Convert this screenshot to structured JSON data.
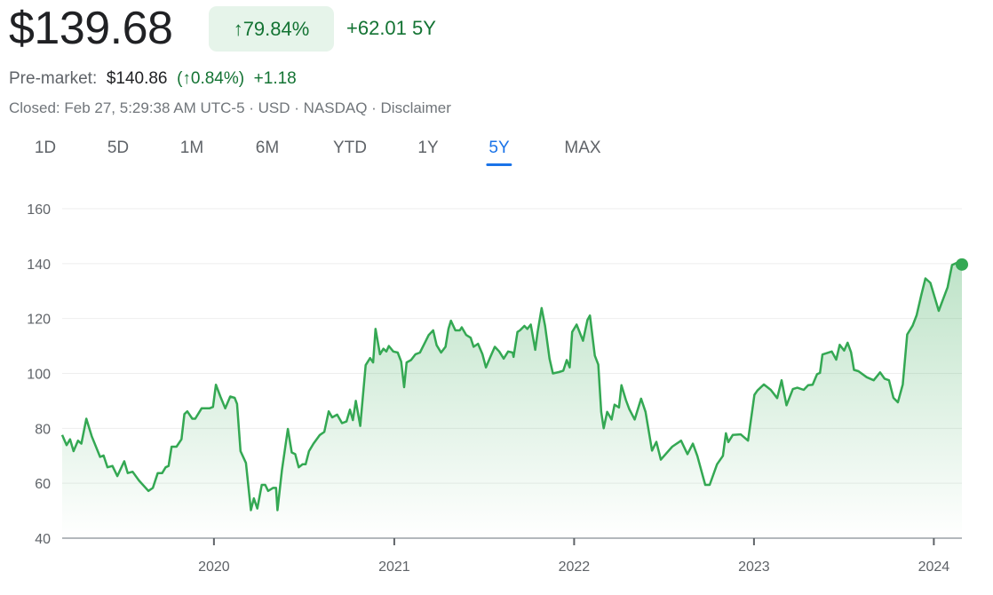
{
  "header": {
    "price": "$139.68",
    "change_percent": "↑79.84%",
    "change_abs": "+62.01 5Y",
    "premarket_label": "Pre-market:",
    "premarket_price": "$140.86",
    "premarket_change_percent": "(↑0.84%)",
    "premarket_change_abs": "+1.18",
    "closed_info": "Closed: Feb 27, 5:29:38 AM UTC-5 · USD · NASDAQ · Disclaimer"
  },
  "tabs": [
    {
      "label": "1D",
      "active": false
    },
    {
      "label": "5D",
      "active": false
    },
    {
      "label": "1M",
      "active": false
    },
    {
      "label": "6M",
      "active": false
    },
    {
      "label": "YTD",
      "active": false
    },
    {
      "label": "1Y",
      "active": false
    },
    {
      "label": "5Y",
      "active": true
    },
    {
      "label": "MAX",
      "active": false
    }
  ],
  "colors": {
    "up": "#137333",
    "line": "#34a853",
    "badge_bg": "#e6f4ea",
    "accent": "#1a73e8"
  },
  "chart_data": {
    "type": "area",
    "xlim": [
      "2019-02-27",
      "2024-02-27"
    ],
    "ylim": [
      40,
      160
    ],
    "yticks": [
      40,
      60,
      80,
      100,
      120,
      140,
      160
    ],
    "xticks": [
      "2020",
      "2021",
      "2022",
      "2023",
      "2024"
    ],
    "grid": true,
    "series": [
      {
        "x": [
          "2019-02-27",
          "2019-03-08",
          "2019-03-15",
          "2019-03-22",
          "2019-03-31",
          "2019-04-07",
          "2019-04-17",
          "2019-04-28",
          "2019-05-15",
          "2019-05-22",
          "2019-05-30",
          "2019-06-09",
          "2019-06-19",
          "2019-07-03",
          "2019-07-10",
          "2019-07-20",
          "2019-08-02",
          "2019-08-21",
          "2019-08-30",
          "2019-09-09",
          "2019-09-18",
          "2019-09-25",
          "2019-10-01",
          "2019-10-07",
          "2019-10-17",
          "2019-10-27",
          "2019-11-02",
          "2019-11-08",
          "2019-11-18",
          "2019-11-24",
          "2019-12-07",
          "2019-12-23",
          "2019-12-30",
          "2020-01-05",
          "2020-01-14",
          "2020-01-24",
          "2020-02-03",
          "2020-02-12",
          "2020-02-17",
          "2020-02-24",
          "2020-03-06",
          "2020-03-16",
          "2020-03-22",
          "2020-03-29",
          "2020-04-07",
          "2020-04-14",
          "2020-04-20",
          "2020-04-30",
          "2020-05-06",
          "2020-05-09",
          "2020-05-18",
          "2020-05-30",
          "2020-06-07",
          "2020-06-14",
          "2020-06-21",
          "2020-06-29",
          "2020-07-05",
          "2020-07-12",
          "2020-07-21",
          "2020-08-03",
          "2020-08-12",
          "2020-08-21",
          "2020-08-28",
          "2020-09-07",
          "2020-09-17",
          "2020-09-26",
          "2020-10-03",
          "2020-10-09",
          "2020-10-15",
          "2020-10-24",
          "2020-11-04",
          "2020-11-13",
          "2020-11-19",
          "2020-11-24",
          "2020-12-03",
          "2020-12-10",
          "2020-12-16",
          "2020-12-21",
          "2020-12-30",
          "2021-01-08",
          "2021-01-15",
          "2021-01-21",
          "2021-01-26",
          "2021-02-04",
          "2021-02-13",
          "2021-02-22",
          "2021-03-03",
          "2021-03-12",
          "2021-03-21",
          "2021-03-28",
          "2021-04-06",
          "2021-04-15",
          "2021-04-21",
          "2021-04-26",
          "2021-05-05",
          "2021-05-14",
          "2021-05-18",
          "2021-05-27",
          "2021-06-05",
          "2021-06-11",
          "2021-06-20",
          "2021-06-29",
          "2021-07-06",
          "2021-07-15",
          "2021-07-24",
          "2021-08-02",
          "2021-08-11",
          "2021-08-20",
          "2021-08-29",
          "2021-08-31",
          "2021-09-08",
          "2021-09-13",
          "2021-09-22",
          "2021-09-28",
          "2021-10-05",
          "2021-10-14",
          "2021-10-19",
          "2021-10-27",
          "2021-11-03",
          "2021-11-12",
          "2021-11-19",
          "2021-12-01",
          "2021-12-10",
          "2021-12-17",
          "2021-12-23",
          "2021-12-28",
          "2022-01-06",
          "2022-01-19",
          "2022-01-28",
          "2022-02-02",
          "2022-02-12",
          "2022-02-19",
          "2022-02-25",
          "2022-03-02",
          "2022-03-09",
          "2022-03-18",
          "2022-03-24",
          "2022-04-02",
          "2022-04-07",
          "2022-04-16",
          "2022-04-23",
          "2022-05-04",
          "2022-05-17",
          "2022-05-26",
          "2022-06-08",
          "2022-06-17",
          "2022-06-26",
          "2022-07-19",
          "2022-08-06",
          "2022-08-19",
          "2022-08-30",
          "2022-09-08",
          "2022-09-24",
          "2022-10-03",
          "2022-10-18",
          "2022-10-30",
          "2022-11-05",
          "2022-11-10",
          "2022-11-19",
          "2022-12-05",
          "2022-12-20",
          "2023-01-02",
          "2023-01-08",
          "2023-01-21",
          "2023-02-04",
          "2023-02-17",
          "2023-02-26",
          "2023-03-08",
          "2023-03-21",
          "2023-03-30",
          "2023-04-12",
          "2023-04-21",
          "2023-04-30",
          "2023-05-09",
          "2023-05-15",
          "2023-05-20",
          "2023-06-08",
          "2023-06-17",
          "2023-06-24",
          "2023-07-03",
          "2023-07-10",
          "2023-07-17",
          "2023-07-23",
          "2023-08-01",
          "2023-08-18",
          "2023-09-01",
          "2023-09-14",
          "2023-09-23",
          "2023-10-02",
          "2023-10-11",
          "2023-10-20",
          "2023-10-30",
          "2023-11-08",
          "2023-11-19",
          "2023-11-27",
          "2023-12-06",
          "2023-12-15",
          "2023-12-25",
          "2024-01-11",
          "2024-01-20",
          "2024-01-29",
          "2024-02-07",
          "2024-02-16",
          "2024-02-27"
        ],
        "y": [
          77.6,
          73.9,
          76,
          71.7,
          75.5,
          74.4,
          83.5,
          77.1,
          69.6,
          70.1,
          65.8,
          66.3,
          62.6,
          68,
          63.7,
          64.2,
          61,
          57.2,
          58.3,
          63.7,
          63.7,
          65.8,
          66.3,
          73.3,
          73.3,
          76,
          85.2,
          86.2,
          83.5,
          83.5,
          87.3,
          87.3,
          87.8,
          95.9,
          91.6,
          87.3,
          91.6,
          91.1,
          88.9,
          71.7,
          67.4,
          50.2,
          54.5,
          50.8,
          59.4,
          59.4,
          57.2,
          58.3,
          58.3,
          50.2,
          64.7,
          79.8,
          71.2,
          70.6,
          65.8,
          66.9,
          66.9,
          71.7,
          74.4,
          77.6,
          78.7,
          86.2,
          84,
          85,
          81.9,
          82.5,
          86.8,
          83,
          90,
          80.9,
          103,
          105.6,
          104,
          116.2,
          107,
          109,
          108,
          110,
          108,
          107.6,
          104.3,
          95,
          104,
          104.9,
          107,
          107.6,
          110.8,
          114,
          115.7,
          110.3,
          107.6,
          109.7,
          116.2,
          119.2,
          115.7,
          115.7,
          116.8,
          114,
          113,
          109.7,
          110.8,
          107,
          102.2,
          106,
          109.7,
          108,
          105.4,
          108,
          107.6,
          106,
          115.1,
          115.7,
          117.3,
          116.2,
          117.8,
          108.6,
          115.1,
          123.8,
          117.3,
          105.4,
          100,
          100.5,
          101,
          104.9,
          102.2,
          115.1,
          117.8,
          111.9,
          119.5,
          121.1,
          106.5,
          103.2,
          86,
          80,
          86,
          83.2,
          88.6,
          87.6,
          95.7,
          90.3,
          87,
          83.2,
          90.8,
          86,
          71.9,
          75.1,
          68.6,
          73.3,
          75.5,
          70.6,
          74.4,
          70,
          59.4,
          59.4,
          66.9,
          70,
          78.2,
          75,
          77.6,
          77.8,
          75.5,
          92.2,
          93.8,
          96,
          94,
          91,
          97.5,
          88.4,
          94.3,
          94.8,
          94,
          95.7,
          95.9,
          99.7,
          100.2,
          106.9,
          108,
          105,
          110.4,
          108.3,
          111.2,
          107.7,
          101.3,
          100.8,
          98.6,
          97.5,
          100.4,
          98.1,
          97.5,
          91.1,
          89.5,
          96,
          114.2,
          117.4,
          121.2,
          128.2,
          134.6,
          133,
          122.8,
          127.1,
          131.4,
          139.5,
          140.2,
          139.68
        ]
      }
    ]
  }
}
